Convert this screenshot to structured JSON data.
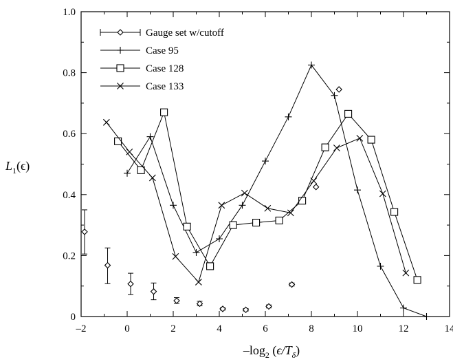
{
  "chart_data": {
    "type": "line",
    "xlabel": {
      "prefix": "–log",
      "sub": "2",
      "open": " (",
      "var": "ϵ/T",
      "varsub": "δ",
      "close": ")"
    },
    "ylabel": {
      "var": "L",
      "sub": "1",
      "rest": "(ϵ)"
    },
    "xlim": [
      -2,
      14
    ],
    "ylim": [
      0,
      1.0
    ],
    "x_ticks": [
      -2,
      0,
      2,
      4,
      6,
      8,
      10,
      12,
      14
    ],
    "x_tick_labels": [
      "–2",
      "0",
      "2",
      "4",
      "6",
      "8",
      "10",
      "12",
      "14"
    ],
    "y_ticks": [
      0,
      0.2,
      0.4,
      0.6,
      0.8,
      1.0
    ],
    "y_tick_labels": [
      "0",
      "0.2",
      "0.4",
      "0.6",
      "0.8",
      "1.0"
    ],
    "grid": false,
    "legend_position": "top-left",
    "legend": [
      "Gauge set w/cutoff",
      "Case 95",
      "Case 128",
      "Case 133"
    ],
    "series": [
      {
        "name": "Gauge set w/cutoff",
        "marker": "diamond",
        "connected": false,
        "points": [
          {
            "x": -1.85,
            "y": 0.278,
            "lo": 0.205,
            "hi": 0.35
          },
          {
            "x": -0.85,
            "y": 0.168,
            "lo": 0.108,
            "hi": 0.225
          },
          {
            "x": 0.15,
            "y": 0.107,
            "lo": 0.072,
            "hi": 0.142
          },
          {
            "x": 1.15,
            "y": 0.082,
            "lo": 0.055,
            "hi": 0.11
          },
          {
            "x": 2.15,
            "y": 0.052,
            "lo": 0.043,
            "hi": 0.062
          },
          {
            "x": 3.15,
            "y": 0.042,
            "lo": 0.035,
            "hi": 0.05
          },
          {
            "x": 4.15,
            "y": 0.025,
            "lo": 0.021,
            "hi": 0.029
          },
          {
            "x": 5.15,
            "y": 0.022,
            "lo": 0.018,
            "hi": 0.026
          },
          {
            "x": 6.15,
            "y": 0.033,
            "lo": 0.028,
            "hi": 0.038
          },
          {
            "x": 7.15,
            "y": 0.105,
            "lo": 0.1,
            "hi": 0.11
          },
          {
            "x": 8.2,
            "y": 0.425
          },
          {
            "x": 9.2,
            "y": 0.745
          }
        ]
      },
      {
        "name": "Case 95",
        "marker": "plus",
        "connected": true,
        "points": [
          {
            "x": 0.0,
            "y": 0.47
          },
          {
            "x": 1.0,
            "y": 0.59
          },
          {
            "x": 2.0,
            "y": 0.365
          },
          {
            "x": 3.0,
            "y": 0.21
          },
          {
            "x": 4.0,
            "y": 0.255
          },
          {
            "x": 5.0,
            "y": 0.365
          },
          {
            "x": 6.0,
            "y": 0.51
          },
          {
            "x": 7.0,
            "y": 0.655
          },
          {
            "x": 8.0,
            "y": 0.825
          },
          {
            "x": 9.0,
            "y": 0.725
          },
          {
            "x": 10.0,
            "y": 0.415
          },
          {
            "x": 11.0,
            "y": 0.165
          },
          {
            "x": 12.0,
            "y": 0.028
          },
          {
            "x": 13.0,
            "y": 0.0
          }
        ]
      },
      {
        "name": "Case 128",
        "marker": "square",
        "connected": true,
        "points": [
          {
            "x": -0.4,
            "y": 0.575
          },
          {
            "x": 0.6,
            "y": 0.48
          },
          {
            "x": 1.6,
            "y": 0.67
          },
          {
            "x": 2.6,
            "y": 0.295
          },
          {
            "x": 3.6,
            "y": 0.165
          },
          {
            "x": 4.6,
            "y": 0.3
          },
          {
            "x": 5.6,
            "y": 0.308
          },
          {
            "x": 6.6,
            "y": 0.315
          },
          {
            "x": 7.6,
            "y": 0.38
          },
          {
            "x": 8.6,
            "y": 0.555
          },
          {
            "x": 9.6,
            "y": 0.665
          },
          {
            "x": 10.6,
            "y": 0.58
          },
          {
            "x": 11.6,
            "y": 0.343
          },
          {
            "x": 12.6,
            "y": 0.12
          }
        ]
      },
      {
        "name": "Case 133",
        "marker": "x",
        "connected": true,
        "points": [
          {
            "x": -0.9,
            "y": 0.637
          },
          {
            "x": 0.1,
            "y": 0.54
          },
          {
            "x": 1.1,
            "y": 0.455
          },
          {
            "x": 2.1,
            "y": 0.197
          },
          {
            "x": 3.1,
            "y": 0.113
          },
          {
            "x": 4.1,
            "y": 0.365
          },
          {
            "x": 5.1,
            "y": 0.405
          },
          {
            "x": 6.1,
            "y": 0.355
          },
          {
            "x": 7.1,
            "y": 0.34
          },
          {
            "x": 8.1,
            "y": 0.445
          },
          {
            "x": 9.1,
            "y": 0.553
          },
          {
            "x": 10.1,
            "y": 0.585
          },
          {
            "x": 11.1,
            "y": 0.403
          },
          {
            "x": 12.1,
            "y": 0.143
          }
        ]
      }
    ]
  }
}
